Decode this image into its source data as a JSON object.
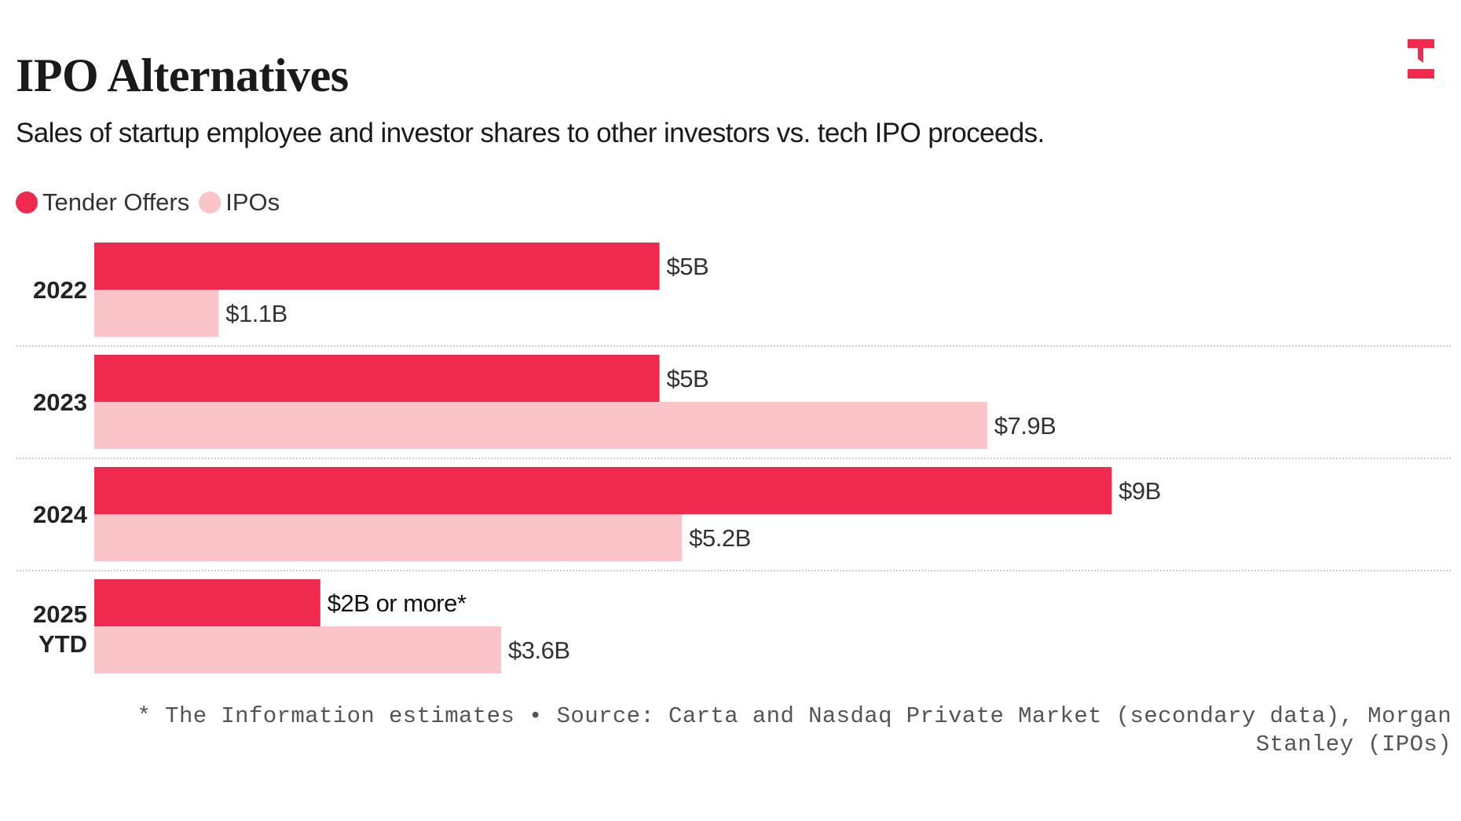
{
  "title": "IPO Alternatives",
  "subtitle": "Sales of startup employee and investor shares to other investors vs. tech IPO proceeds.",
  "logo": "The Information logo",
  "colors": {
    "tender": "#f0294f",
    "ipo": "#fbc4c9"
  },
  "chart_data": {
    "type": "bar",
    "orientation": "horizontal",
    "categories": [
      [
        "2022"
      ],
      [
        "2023"
      ],
      [
        "2024"
      ],
      [
        "2025",
        "YTD"
      ]
    ],
    "series": [
      {
        "name": "Tender Offers",
        "values": [
          5,
          5,
          9,
          2
        ],
        "labels": [
          "$5B",
          "$5B",
          "$9B",
          "$2B or more*"
        ]
      },
      {
        "name": "IPOs",
        "values": [
          1.1,
          7.9,
          5.2,
          3.6
        ],
        "labels": [
          "$1.1B",
          "$7.9B",
          "$5.2B",
          "$3.6B"
        ]
      }
    ],
    "unit": "$B",
    "legend": "top-left",
    "grid": false
  },
  "footnote": "* The Information estimates • Source: Carta and Nasdaq Private Market (secondary data), Morgan Stanley (IPOs)"
}
